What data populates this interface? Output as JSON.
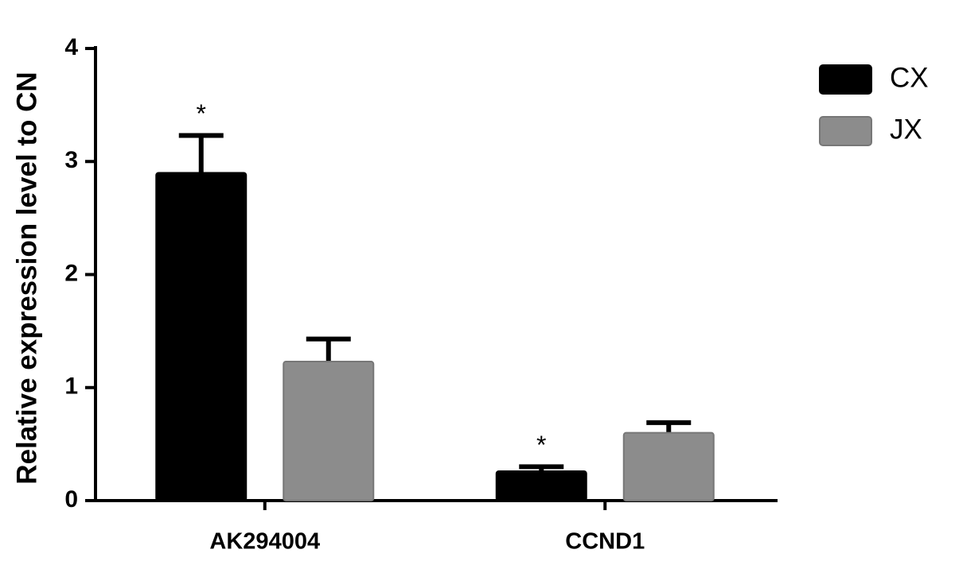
{
  "chart_data": {
    "type": "bar",
    "y_label": "Relative expression level to CN",
    "categories": [
      "AK294004",
      "CCND1"
    ],
    "series": [
      {
        "name": "CX",
        "color": "#000000",
        "values": [
          2.9,
          0.26
        ],
        "errors": [
          0.33,
          0.04
        ],
        "significance": [
          "*",
          "*"
        ]
      },
      {
        "name": "JX",
        "color": "#8c8c8c",
        "values": [
          1.23,
          0.6
        ],
        "errors": [
          0.2,
          0.09
        ]
      }
    ],
    "ylim": [
      0,
      4
    ],
    "yticks": [
      0,
      1,
      2,
      3,
      4
    ],
    "grid": false,
    "legend": "top-right"
  }
}
